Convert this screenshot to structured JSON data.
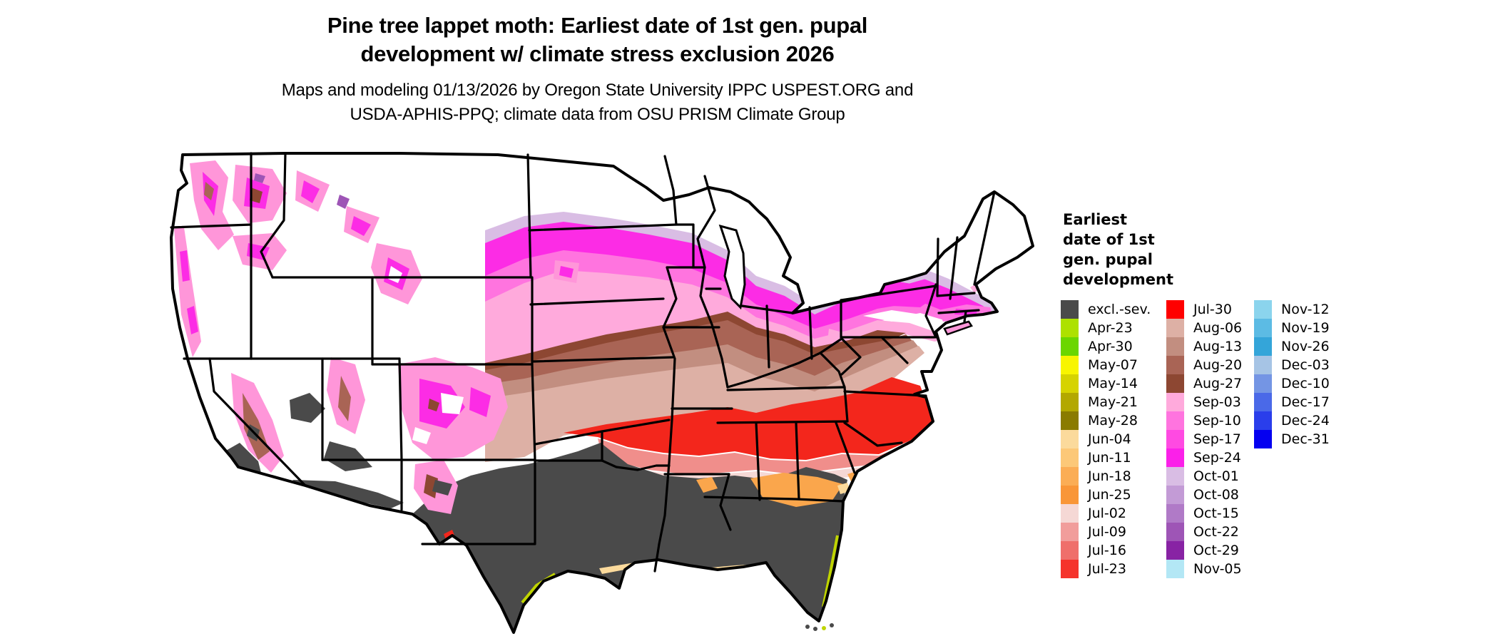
{
  "header": {
    "title_line1": "Pine tree lappet moth: Earliest date of 1st gen. pupal",
    "title_line2": "development w/ climate stress exclusion 2026",
    "subtitle_line1": "Maps and modeling 01/13/2026 by Oregon State University IPPC USPEST.ORG and",
    "subtitle_line2": "USDA-APHIS-PPQ; climate data from OSU PRISM Climate Group"
  },
  "legend": {
    "title_lines": [
      "Earliest",
      "date of 1st",
      "gen. pupal",
      "development"
    ],
    "columns": [
      {
        "entries": [
          {
            "label": "excl.-sev.",
            "color": "#4A4A4A"
          },
          {
            "label": "Apr-23",
            "color": "#ADE100"
          },
          {
            "label": "Apr-30",
            "color": "#6BD600"
          },
          {
            "label": "May-07",
            "color": "#F8F500"
          },
          {
            "label": "May-14",
            "color": "#D6D300"
          },
          {
            "label": "May-21",
            "color": "#B3A800"
          },
          {
            "label": "May-28",
            "color": "#8A7B00"
          },
          {
            "label": "Jun-04",
            "color": "#FBDA9C"
          },
          {
            "label": "Jun-11",
            "color": "#FCC878"
          },
          {
            "label": "Jun-18",
            "color": "#FBAD55"
          },
          {
            "label": "Jun-25",
            "color": "#F99638"
          },
          {
            "label": "Jul-02",
            "color": "#F5D8D5"
          },
          {
            "label": "Jul-09",
            "color": "#F19D9B"
          },
          {
            "label": "Jul-16",
            "color": "#EF6F6B"
          },
          {
            "label": "Jul-23",
            "color": "#F5342C"
          }
        ]
      },
      {
        "entries": [
          {
            "label": "Jul-30",
            "color": "#FF0000"
          },
          {
            "label": "Aug-06",
            "color": "#DDB0A5"
          },
          {
            "label": "Aug-13",
            "color": "#C28E80"
          },
          {
            "label": "Aug-20",
            "color": "#A96455"
          },
          {
            "label": "Aug-27",
            "color": "#8D4732"
          },
          {
            "label": "Sep-03",
            "color": "#FFAADC"
          },
          {
            "label": "Sep-10",
            "color": "#FF74DF"
          },
          {
            "label": "Sep-17",
            "color": "#FF4AE2"
          },
          {
            "label": "Sep-24",
            "color": "#FB20E9"
          },
          {
            "label": "Oct-01",
            "color": "#D9BDE4"
          },
          {
            "label": "Oct-08",
            "color": "#C39BD6"
          },
          {
            "label": "Oct-15",
            "color": "#B07AC7"
          },
          {
            "label": "Oct-22",
            "color": "#9E55B6"
          },
          {
            "label": "Oct-29",
            "color": "#8823A4"
          },
          {
            "label": "Nov-05",
            "color": "#B3E7F5"
          }
        ]
      },
      {
        "entries": [
          {
            "label": "Nov-12",
            "color": "#8BD4ED"
          },
          {
            "label": "Nov-19",
            "color": "#5CBBE4"
          },
          {
            "label": "Nov-26",
            "color": "#34A5D9"
          },
          {
            "label": "Dec-03",
            "color": "#A6C4E5"
          },
          {
            "label": "Dec-10",
            "color": "#7495E4"
          },
          {
            "label": "Dec-17",
            "color": "#4A69E8"
          },
          {
            "label": "Dec-24",
            "color": "#2A3EEB"
          },
          {
            "label": "Dec-31",
            "color": "#0500F0"
          }
        ]
      }
    ]
  },
  "map": {
    "type": "choropleth",
    "region": "Contiguous United States",
    "zones": [
      {
        "area": "Texas, Gulf Coast states, Florida peninsula, lower Mississippi valley, desert Southwest, California Central Valley",
        "value": "excl.-sev."
      },
      {
        "area": "central Georgia / Alabama / South Carolina patches",
        "value": "Jun-18 to Jun-25"
      },
      {
        "area": "Arkansas, Tennessee, Kentucky, Virginia, Carolinas band",
        "value": "Jul-09 to Jul-30"
      },
      {
        "area": "Kansas, Oklahoma, Missouri, Ohio valley",
        "value": "Aug-06 to Aug-27"
      },
      {
        "area": "Nebraska, Iowa, southern Wisconsin, lower Michigan, northern Ohio, coastal New England",
        "value": "Sep-03 to Sep-24"
      },
      {
        "area": "northern fringe of plains, upstate New York, ridge tops",
        "value": "Oct-01 to Oct-29"
      },
      {
        "area": "Cascades, Sierra Nevada, Rocky Mountain ranges",
        "value": "mosaic Aug-27 to Oct-29"
      },
      {
        "area": "northern tier, high mountain West, northern New England",
        "value": "white (no date)"
      }
    ]
  }
}
